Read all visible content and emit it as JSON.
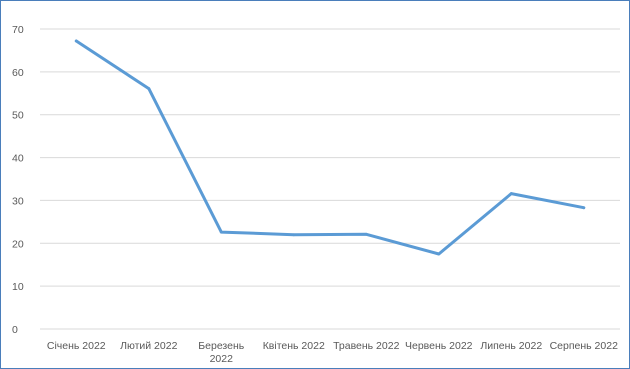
{
  "chart_data": {
    "type": "line",
    "title": "",
    "xlabel": "",
    "ylabel": "",
    "categories": [
      [
        "Січень 2022"
      ],
      [
        "Лютий 2022"
      ],
      [
        "Березень",
        "2022"
      ],
      [
        "Квітень 2022"
      ],
      [
        "Травень 2022"
      ],
      [
        "Червень 2022"
      ],
      [
        "Липень 2022"
      ],
      [
        "Серпень 2022"
      ]
    ],
    "series": [
      {
        "values": [
          67.2,
          56.1,
          22.6,
          22.0,
          22.1,
          17.5,
          31.6,
          28.3
        ],
        "color": "#5b9bd5"
      }
    ],
    "ylim": [
      0,
      70
    ],
    "yticks": [
      0,
      10,
      20,
      30,
      40,
      50,
      60,
      70
    ],
    "grid": true,
    "legend": "none"
  }
}
